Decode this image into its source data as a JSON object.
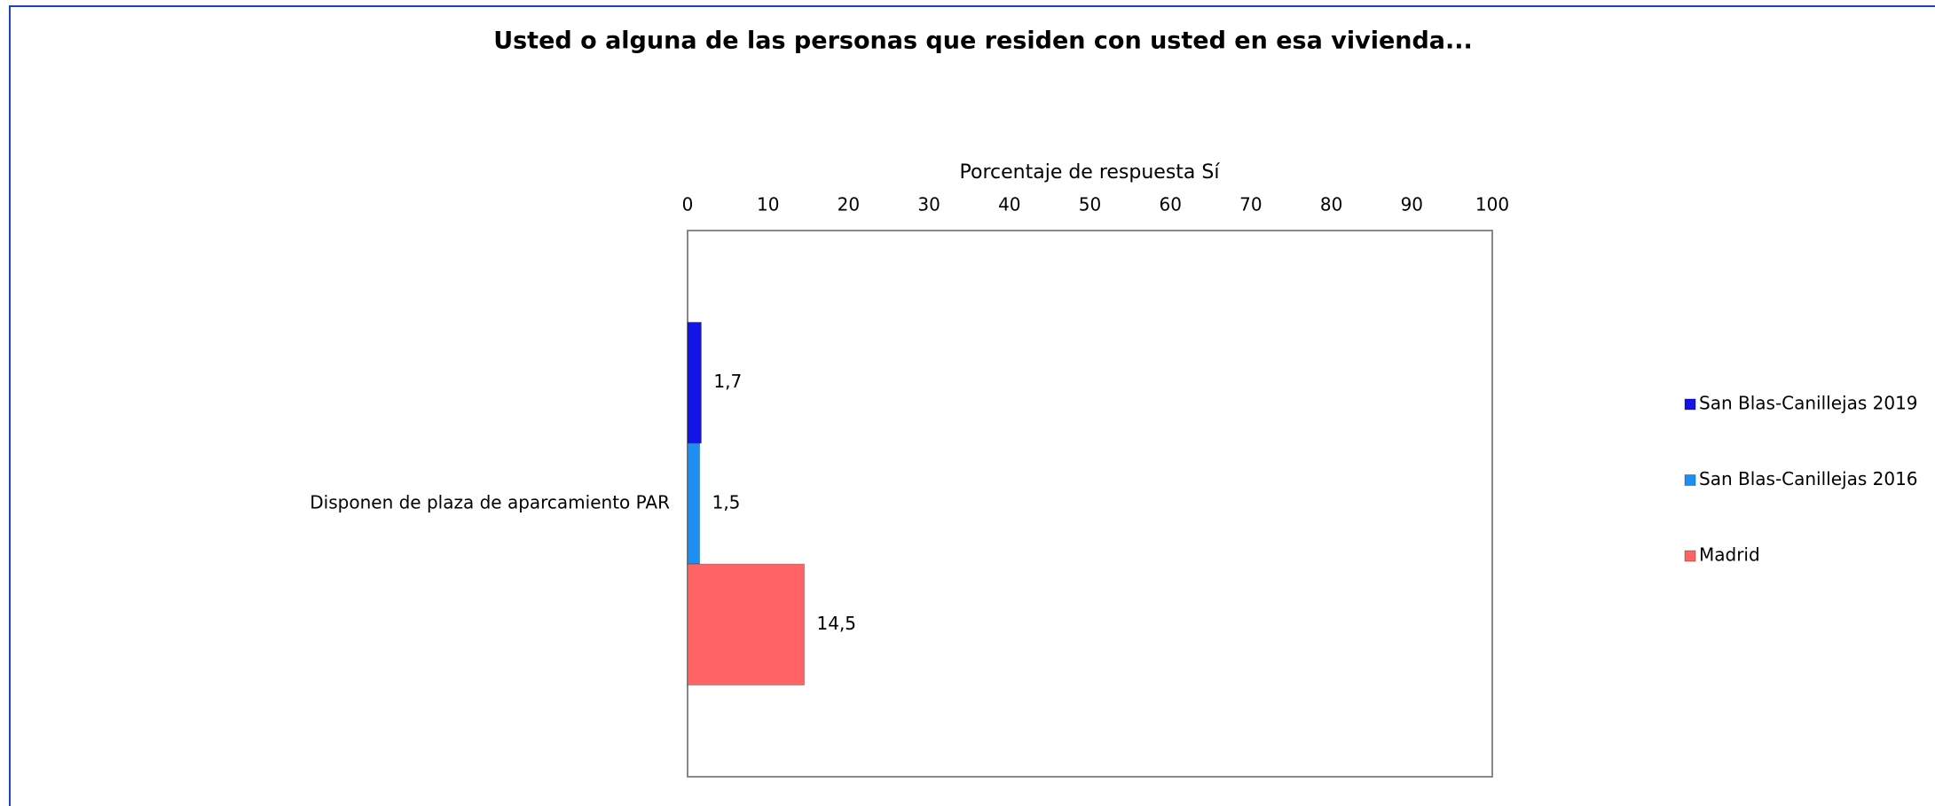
{
  "chart_data": {
    "type": "bar",
    "orientation": "horizontal",
    "title": "Usted o alguna de las personas que residen con usted en esa vivienda...",
    "x_label": "Porcentaje de respuesta Sí",
    "categories": [
      "Disponen de plaza de aparcamiento PAR"
    ],
    "series": [
      {
        "name": "San Blas-Canillejas 2019",
        "color": "#1414e6",
        "values": [
          1.7
        ],
        "value_labels": [
          "1,7"
        ]
      },
      {
        "name": "San Blas-Canillejas 2016",
        "color": "#1e8ff0",
        "values": [
          1.5
        ],
        "value_labels": [
          "1,5"
        ]
      },
      {
        "name": "Madrid",
        "color": "#ff6363",
        "values": [
          14.5
        ],
        "value_labels": [
          "14,5"
        ]
      }
    ],
    "xlim": [
      0,
      100
    ],
    "xticks": [
      0,
      10,
      20,
      30,
      40,
      50,
      60,
      70,
      80,
      90,
      100
    ],
    "legend": "right"
  }
}
